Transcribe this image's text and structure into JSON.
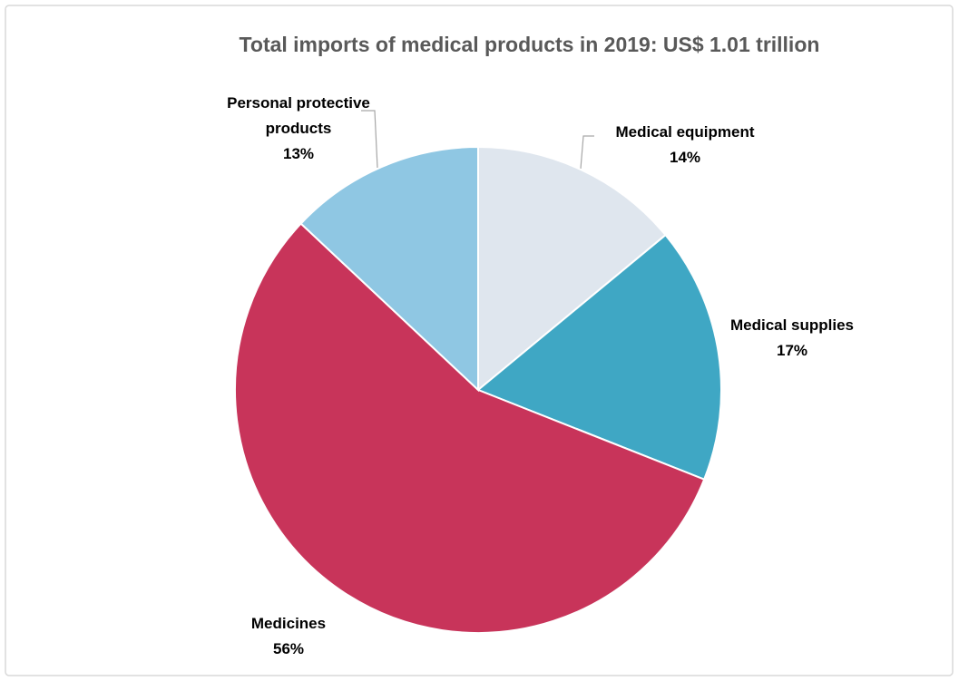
{
  "chart_data": {
    "type": "pie",
    "title": "Total imports of medical products in 2019: US$ 1.01 trillion",
    "categories": [
      "Medical equipment",
      "Medical supplies",
      "Medicines",
      "Personal protective products"
    ],
    "values": [
      14,
      17,
      56,
      13
    ],
    "value_labels": [
      "14%",
      "17%",
      "56%",
      "13%"
    ],
    "colors": [
      "#dfe6ee",
      "#3fa7c4",
      "#c8345a",
      "#8fc7e3"
    ]
  }
}
